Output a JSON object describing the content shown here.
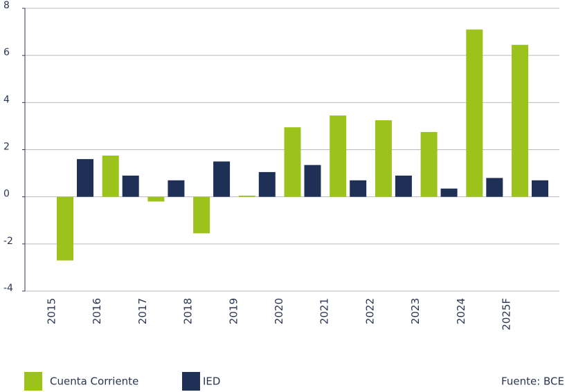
{
  "chart_data": {
    "type": "bar",
    "categories": [
      "2015",
      "2016",
      "2017",
      "2018",
      "2019",
      "2020",
      "2021",
      "2022",
      "2023",
      "2024",
      "2025F"
    ],
    "series": [
      {
        "name": "Cuenta Corriente",
        "color": "#9bc31c",
        "values": [
          -2.7,
          1.75,
          -0.2,
          -1.55,
          0.05,
          2.95,
          3.45,
          3.25,
          2.75,
          7.1,
          6.45
        ]
      },
      {
        "name": "IED",
        "color": "#1f3057",
        "values": [
          1.6,
          0.9,
          0.7,
          1.5,
          1.05,
          1.35,
          0.7,
          0.9,
          0.35,
          0.8,
          0.7
        ]
      }
    ],
    "ylim": [
      -4,
      8
    ],
    "yticks": [
      -4,
      -2,
      0,
      2,
      4,
      6,
      8
    ],
    "grid": true,
    "legend": "bottom-left",
    "source": "Fuente: BCE"
  }
}
